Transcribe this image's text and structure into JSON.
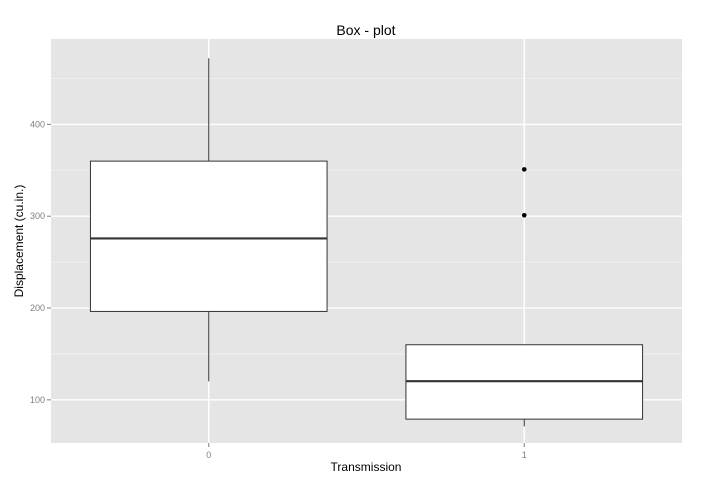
{
  "chart_data": {
    "type": "box",
    "title": "Box - plot",
    "xlabel": "Transmission",
    "ylabel": "Displacement (cu.in.)",
    "categories": [
      "0",
      "1"
    ],
    "boxes": [
      {
        "category": "0",
        "whisker_low": 120.1,
        "q1": 196.3,
        "median": 275.8,
        "q3": 360,
        "whisker_high": 472,
        "outliers": []
      },
      {
        "category": "1",
        "whisker_low": 71.1,
        "q1": 79,
        "median": 120.3,
        "q3": 160,
        "whisker_high": 160,
        "outliers": [
          351,
          301
        ]
      }
    ],
    "ylim": [
      53,
      493
    ],
    "yticks": [
      100,
      200,
      300,
      400
    ],
    "grid": true,
    "panel_background": "#e5e5e5",
    "gridline_color": "#ffffff",
    "box_fill": "#ffffff",
    "box_stroke": "#333333"
  }
}
